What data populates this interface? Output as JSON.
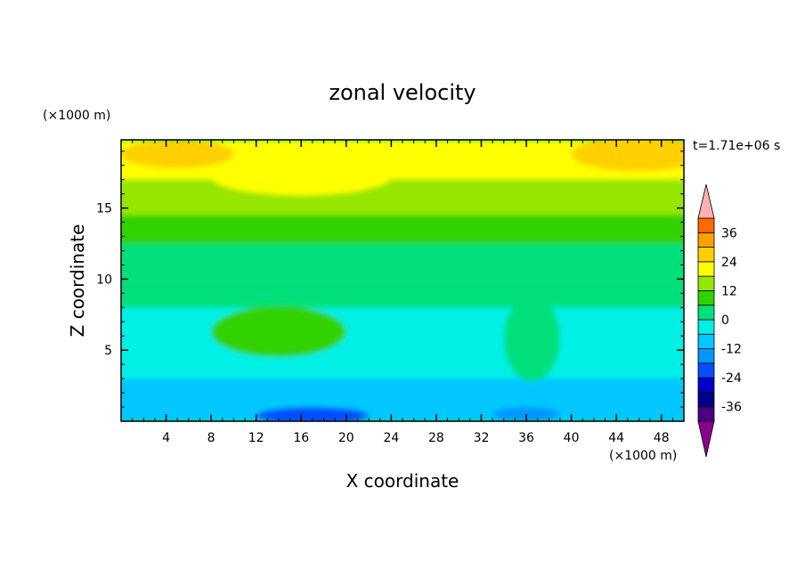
{
  "chart_data": {
    "type": "heatmap",
    "title": "zonal velocity",
    "xlabel": "X coordinate",
    "ylabel": "Z coordinate",
    "x_unit": "(×1000 m)",
    "y_unit": "(×1000 m)",
    "time_label": "t=1.71e+06 s",
    "xlim": [
      0,
      50
    ],
    "ylim": [
      0,
      19.8
    ],
    "x_ticks": [
      4,
      8,
      12,
      16,
      20,
      24,
      28,
      32,
      36,
      40,
      44,
      48
    ],
    "y_ticks": [
      5,
      10,
      15
    ],
    "colorbar": {
      "levels": [
        -42,
        -36,
        -30,
        -24,
        -18,
        -12,
        -6,
        0,
        6,
        12,
        18,
        24,
        30,
        36,
        42
      ],
      "colors": [
        "#4b0082",
        "#00008b",
        "#0000cd",
        "#0050ff",
        "#0096ff",
        "#00c8ff",
        "#00f0e6",
        "#00e07a",
        "#32d200",
        "#96e600",
        "#ffff00",
        "#ffd000",
        "#ffa000",
        "#ff6a00",
        "#ff2a00"
      ],
      "under_color": "#8b008b",
      "over_color": "#ffb0b0",
      "tick_labels": [
        "36",
        "24",
        "12",
        "0",
        "-12",
        "-24",
        "-36"
      ],
      "tick_values": [
        36,
        24,
        12,
        0,
        -12,
        -24,
        -36
      ]
    },
    "field": {
      "description_levels": "approximate zonal velocity values by height band",
      "rows": [
        {
          "z_range": [
            17,
            19.8
          ],
          "value": 22
        },
        {
          "z_range": [
            14.5,
            17
          ],
          "value": 15
        },
        {
          "z_range": [
            12.5,
            14.5
          ],
          "value": 9
        },
        {
          "z_range": [
            10,
            12.5
          ],
          "value": 3
        },
        {
          "z_range": [
            8,
            10
          ],
          "value": 0
        },
        {
          "z_range": [
            3,
            8
          ],
          "value": -4
        },
        {
          "z_range": [
            0,
            3
          ],
          "value": -9
        }
      ],
      "features": [
        {
          "x": 14,
          "z": 6.3,
          "rx": 6,
          "rz": 1.8,
          "value": 7
        },
        {
          "x": 36.5,
          "z": 5.8,
          "rx": 2.5,
          "rz": 3.0,
          "value": 4
        },
        {
          "x": 17,
          "z": 0.4,
          "rx": 5,
          "rz": 0.6,
          "value": -20
        },
        {
          "x": 36,
          "z": 0.5,
          "rx": 3,
          "rz": 0.5,
          "value": -16
        },
        {
          "x": 16,
          "z": 17.2,
          "rx": 8,
          "rz": 1.3,
          "value": 18
        },
        {
          "x": 46,
          "z": 18.8,
          "rx": 6,
          "rz": 1.2,
          "value": 25
        },
        {
          "x": 5,
          "z": 18.8,
          "rx": 5,
          "rz": 1.0,
          "value": 25
        }
      ]
    }
  }
}
